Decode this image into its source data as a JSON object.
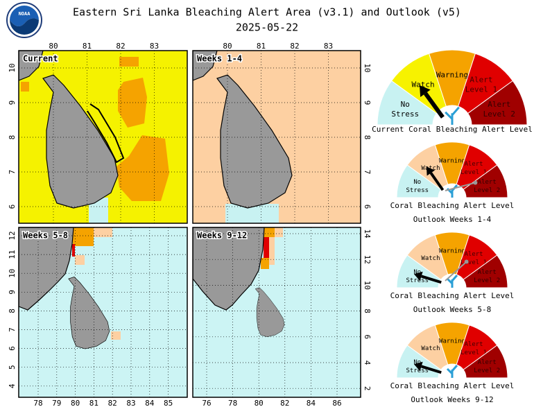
{
  "header": {
    "title": "Eastern Sri Lanka Bleaching Alert Area (v3.1) and Outlook (v5)",
    "date": "2025-05-22",
    "logo": "NOAA"
  },
  "panels": [
    {
      "label": "Current",
      "top_ticks": [
        80,
        81,
        82,
        83
      ],
      "left_ticks": [
        10,
        9,
        8,
        7,
        6
      ]
    },
    {
      "label": "Weeks 1-4",
      "top_ticks": [
        80,
        81,
        82,
        83
      ],
      "right_ticks": [
        10,
        9,
        8,
        7,
        6
      ]
    },
    {
      "label": "Weeks 5-8",
      "left_ticks": [
        12,
        11,
        10,
        9,
        8,
        7,
        6,
        5,
        4
      ],
      "bottom_ticks": [
        78,
        79,
        80,
        81,
        82,
        83,
        84,
        85
      ]
    },
    {
      "label": "Weeks 9-12",
      "right_ticks": [
        14,
        12,
        10,
        8,
        6,
        4,
        2
      ],
      "bottom_ticks": [
        76,
        78,
        80,
        82,
        84,
        86
      ]
    }
  ],
  "gauges": [
    {
      "labels": [
        [
          "No",
          "Stress"
        ],
        [
          "Watch"
        ],
        [
          "Warning"
        ],
        [
          "Alert",
          "Level 1"
        ],
        [
          "Alert",
          "Level 2"
        ]
      ],
      "caption": [
        "Current Coral Bleaching Alert Level"
      ]
    },
    {
      "labels": [
        [
          "No",
          "Stress"
        ],
        [
          "Watch"
        ],
        [
          "Warning"
        ],
        [
          "Alert",
          "Level 1"
        ],
        [
          "Alert",
          "Level 2"
        ]
      ],
      "caption": [
        "Coral Bleaching Alert Level",
        "Outlook Weeks 1-4"
      ]
    },
    {
      "labels": [
        [
          "No",
          "Stress"
        ],
        [
          "Watch"
        ],
        [
          "Warning"
        ],
        [
          "Alert",
          "Level 1"
        ],
        [
          "Alert",
          "Level 2"
        ]
      ],
      "caption": [
        "Coral Bleaching Alert Level",
        "Outlook Weeks 5-8"
      ]
    },
    {
      "labels": [
        [
          "No",
          "Stress"
        ],
        [
          "Watch"
        ],
        [
          "Warning"
        ],
        [
          "Alert",
          "Level 1"
        ],
        [
          "Alert",
          "Level 2"
        ]
      ],
      "caption": [
        "Coral Bleaching Alert Level",
        "Outlook Weeks 9-12"
      ]
    }
  ]
}
